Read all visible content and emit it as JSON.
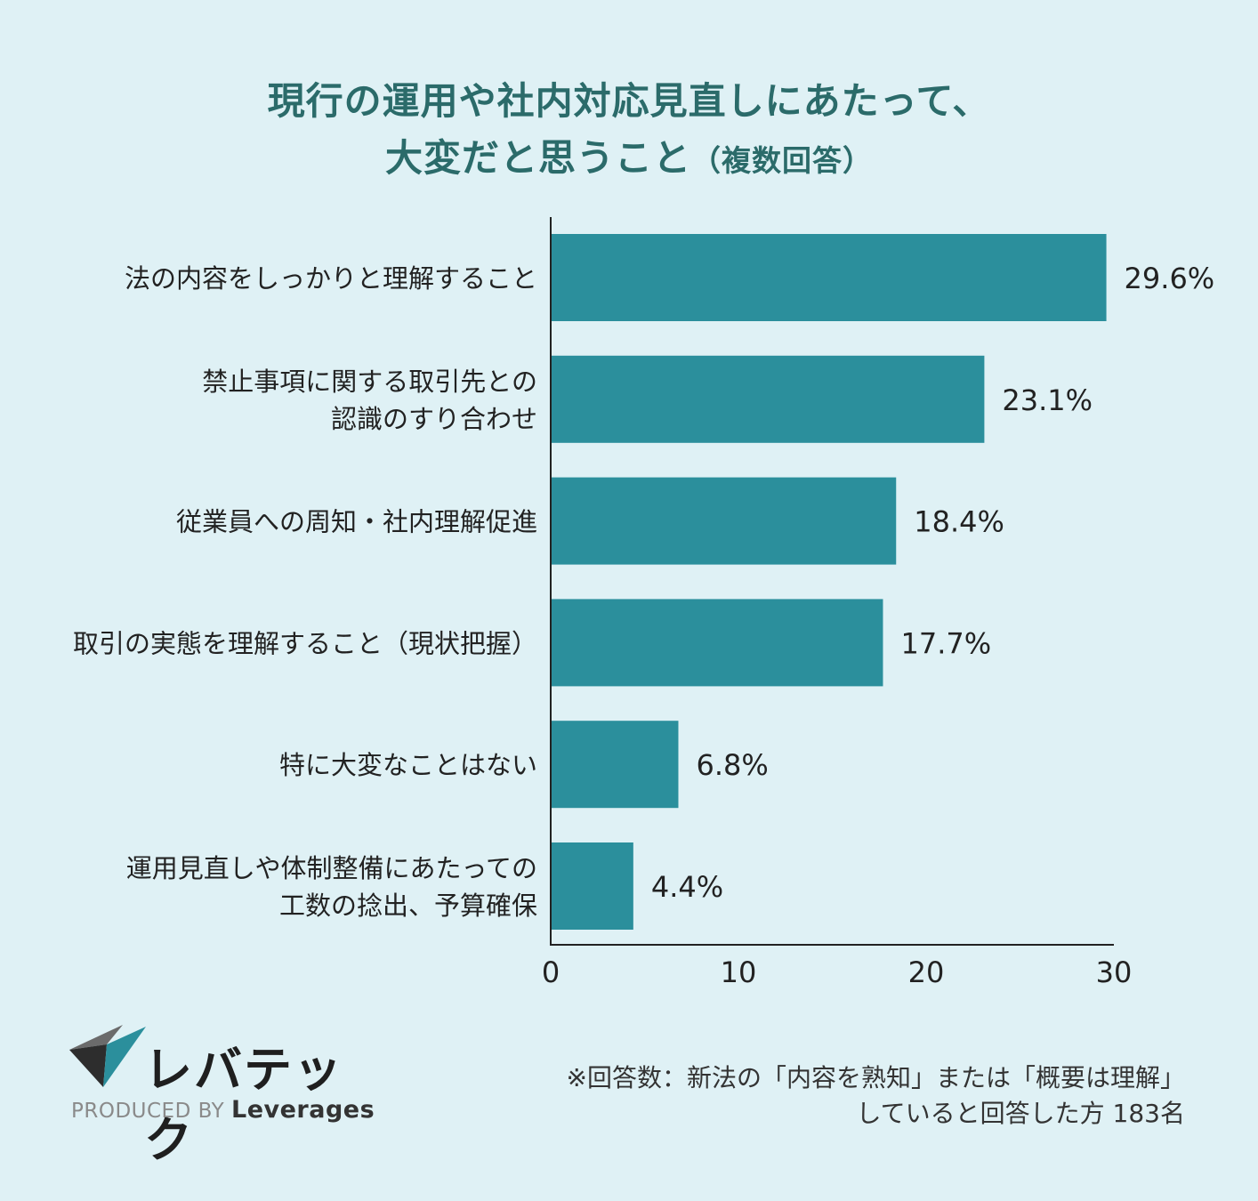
{
  "title_line1": "現行の運用や社内対応見直しにあたって、",
  "title_line2": "大変だと思うこと",
  "title_suffix": "（複数回答）",
  "chart_data": {
    "type": "bar",
    "orientation": "horizontal",
    "categories": [
      [
        "法の内容をしっかりと理解すること"
      ],
      [
        "禁止事項に関する取引先との",
        "認識のすり合わせ"
      ],
      [
        "従業員への周知・社内理解促進"
      ],
      [
        "取引の実態を理解すること（現状把握）"
      ],
      [
        "特に大変なことはない"
      ],
      [
        "運用見直しや体制整備にあたっての",
        "工数の捻出、予算確保"
      ]
    ],
    "values": [
      29.6,
      23.1,
      18.4,
      17.7,
      6.8,
      4.4
    ],
    "value_labels": [
      "29.6%",
      "23.1%",
      "18.4%",
      "17.7%",
      "6.8%",
      "4.4%"
    ],
    "xlim": [
      0,
      30
    ],
    "xticks": [
      "0",
      "10",
      "20",
      "30"
    ],
    "bar_color": "#2b8f9c",
    "grid": false
  },
  "footer": {
    "note_line1": "※回答数：新法の「内容を熟知」または「概要は理解」",
    "note_line2": "していると回答した方 183名"
  },
  "logo": {
    "wordmark": "レバテック",
    "produced_by": "PRODUCED BY",
    "company": "Leverages"
  }
}
